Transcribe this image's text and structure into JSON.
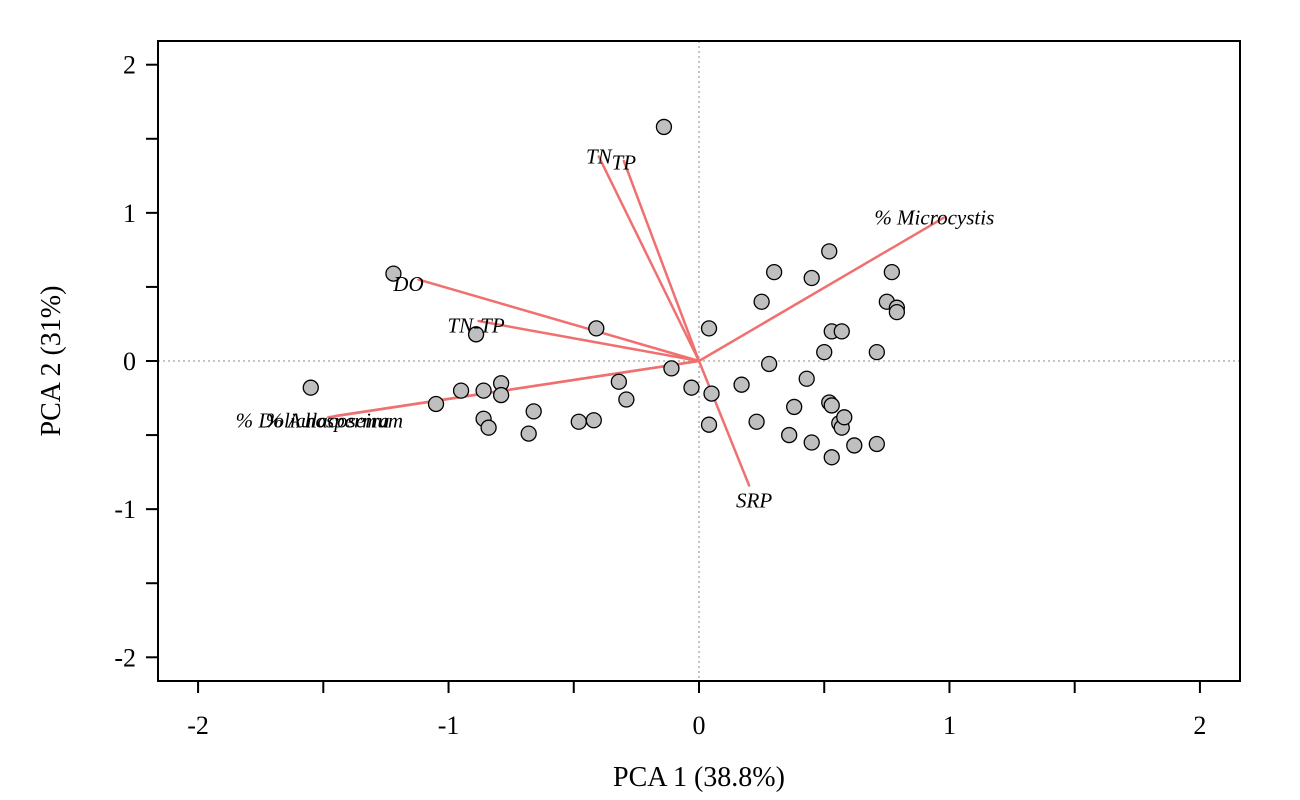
{
  "chart_data": {
    "type": "scatter",
    "xlabel": "PCA 1 (38.8%)",
    "ylabel": "PCA 2 (31%)",
    "xlim": [
      -2.16,
      2.16
    ],
    "ylim": [
      -2.16,
      2.16
    ],
    "x_ticks": [
      -2,
      -1.5,
      -1,
      -0.5,
      0,
      0.5,
      1,
      1.5,
      2
    ],
    "x_tick_labels": [
      "-2",
      "",
      "-1",
      "",
      "0",
      "",
      "1",
      "",
      "2"
    ],
    "y_ticks": [
      -2,
      -1.5,
      -1,
      -0.5,
      0,
      0.5,
      1,
      1.5,
      2
    ],
    "y_tick_labels": [
      "-2",
      "",
      "-1",
      "",
      "0",
      "",
      "1",
      "",
      "2"
    ],
    "reference_lines": {
      "x": 0,
      "y": 0,
      "style": "dotted",
      "color": "#b0b0b0"
    },
    "point_color": "#bfbfbf",
    "vector_color": "#f07070",
    "points": [
      [
        -0.14,
        1.58
      ],
      [
        -1.22,
        0.59
      ],
      [
        -0.41,
        0.22
      ],
      [
        -0.89,
        0.18
      ],
      [
        -1.55,
        -0.18
      ],
      [
        -1.05,
        -0.29
      ],
      [
        -0.95,
        -0.2
      ],
      [
        -0.86,
        -0.2
      ],
      [
        -0.79,
        -0.15
      ],
      [
        -0.79,
        -0.23
      ],
      [
        -0.86,
        -0.39
      ],
      [
        -0.84,
        -0.45
      ],
      [
        -0.66,
        -0.34
      ],
      [
        -0.68,
        -0.49
      ],
      [
        -0.48,
        -0.41
      ],
      [
        -0.42,
        -0.4
      ],
      [
        -0.32,
        -0.14
      ],
      [
        -0.29,
        -0.26
      ],
      [
        -0.11,
        -0.05
      ],
      [
        -0.03,
        -0.18
      ],
      [
        0.04,
        0.22
      ],
      [
        0.05,
        -0.22
      ],
      [
        0.04,
        -0.43
      ],
      [
        0.17,
        -0.16
      ],
      [
        0.23,
        -0.41
      ],
      [
        0.25,
        0.4
      ],
      [
        0.28,
        -0.02
      ],
      [
        0.3,
        0.6
      ],
      [
        0.36,
        -0.5
      ],
      [
        0.38,
        -0.31
      ],
      [
        0.43,
        -0.12
      ],
      [
        0.45,
        -0.55
      ],
      [
        0.45,
        0.56
      ],
      [
        0.5,
        0.06
      ],
      [
        0.52,
        0.74
      ],
      [
        0.52,
        -0.28
      ],
      [
        0.53,
        -0.3
      ],
      [
        0.53,
        -0.65
      ],
      [
        0.53,
        0.2
      ],
      [
        0.56,
        -0.42
      ],
      [
        0.57,
        -0.45
      ],
      [
        0.57,
        0.2
      ],
      [
        0.58,
        -0.38
      ],
      [
        0.62,
        -0.57
      ],
      [
        0.71,
        -0.56
      ],
      [
        0.71,
        0.06
      ],
      [
        0.75,
        0.4
      ],
      [
        0.77,
        0.6
      ],
      [
        0.79,
        0.36
      ],
      [
        0.79,
        0.33
      ]
    ],
    "vectors": [
      {
        "label": "% Microcystis",
        "x": 0.98,
        "y": 0.97,
        "label_x": 0.7,
        "label_y": 0.97,
        "anchor": "start"
      },
      {
        "label": "TN",
        "x": -0.4,
        "y": 1.38,
        "label_x": -0.4,
        "label_y": 1.38,
        "anchor": "middle"
      },
      {
        "label": "TP",
        "x": -0.3,
        "y": 1.35,
        "label_x": -0.3,
        "label_y": 1.34,
        "anchor": "middle"
      },
      {
        "label": "DO",
        "x": -1.12,
        "y": 0.55,
        "label_x": -1.16,
        "label_y": 0.52,
        "anchor": "middle"
      },
      {
        "label": "TN-TP",
        "x": -0.88,
        "y": 0.27,
        "label_x": -0.89,
        "label_y": 0.24,
        "anchor": "middle"
      },
      {
        "label": "% Dolichospermum",
        "x": -1.45,
        "y": -0.37,
        "label_x": -1.85,
        "label_y": -0.4,
        "anchor": "start"
      },
      {
        "label": "% Aulacoseira",
        "x": -1.48,
        "y": -0.38,
        "label_x": -1.73,
        "label_y": -0.4,
        "anchor": "start"
      },
      {
        "label": "SRP",
        "x": 0.2,
        "y": -0.84,
        "label_x": 0.22,
        "label_y": -0.94,
        "anchor": "middle"
      }
    ]
  }
}
